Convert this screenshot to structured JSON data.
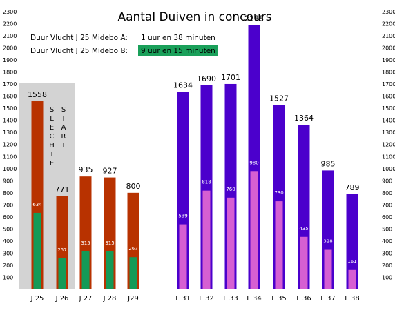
{
  "chart_data": {
    "type": "bar",
    "title": "Aantal Duiven in concours",
    "ylim": [
      0,
      2300
    ],
    "yticks": [
      100,
      200,
      300,
      400,
      500,
      600,
      700,
      800,
      900,
      1000,
      1100,
      1200,
      1300,
      1400,
      1500,
      1600,
      1700,
      1800,
      1900,
      2000,
      2100,
      2200,
      2300
    ],
    "grid": false,
    "groups": [
      {
        "categories": [
          "J 25",
          "J 26",
          "J 27",
          "J 28",
          "J29"
        ],
        "series": [
          {
            "role": "total",
            "color": "#b83200",
            "values": [
              1558,
              771,
              935,
              927,
              800
            ]
          },
          {
            "role": "sub",
            "color": "#149a57",
            "values": [
              634,
              257,
              315,
              315,
              267
            ]
          }
        ]
      },
      {
        "categories": [
          "L 31",
          "L 32",
          "L 33",
          "L 34",
          "L 35",
          "L 36",
          "L 37",
          "L 38"
        ],
        "series": [
          {
            "role": "total",
            "color": "#4b00cc",
            "values": [
              1634,
              1690,
              1701,
              2188,
              1527,
              1364,
              985,
              789
            ]
          },
          {
            "role": "sub",
            "color": "#d65fd2",
            "values": [
              539,
              818,
              760,
              980,
              730,
              435,
              328,
              161
            ]
          }
        ]
      }
    ],
    "annotation": {
      "text": "SLECHTE START",
      "line1": "S L E C H T E",
      "line2": "S T A R T",
      "shaded_categories": [
        "J 25",
        "J 26"
      ],
      "shade_color": "#d3d3d3"
    }
  },
  "info": {
    "line_a_label": "Duur Vlucht  J 25 Midebo A:",
    "line_a_value": "1 uur en 38 minuten",
    "line_b_label": "Duur Vlucht  J 25 Midebo B:",
    "line_b_value": "9 uur en 15 minuten",
    "highlight_color": "#1aa05a"
  }
}
